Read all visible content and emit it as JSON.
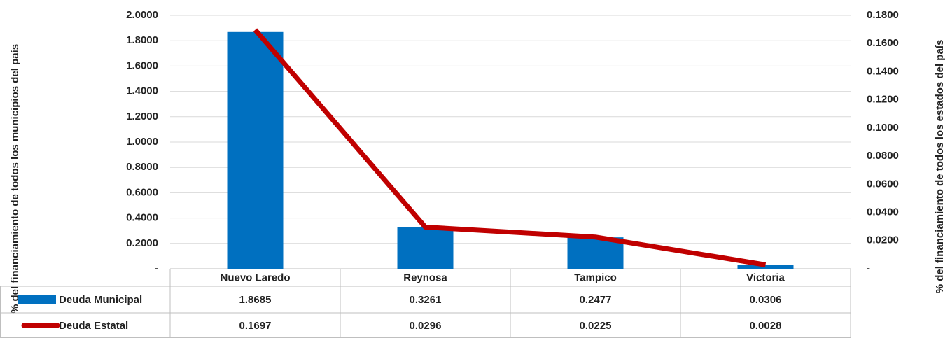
{
  "chart_data": {
    "type": "bar",
    "categories": [
      "Nuevo Laredo",
      "Reynosa",
      "Tampico",
      "Victoria"
    ],
    "series": [
      {
        "name": "Deuda Municipal",
        "type": "bar",
        "color": "#0070C0",
        "values": [
          1.8685,
          0.3261,
          0.2477,
          0.0306
        ]
      },
      {
        "name": "Deuda Estatal",
        "type": "line",
        "axis": "y2",
        "color": "#C00000",
        "values": [
          0.1697,
          0.0296,
          0.0225,
          0.0028
        ]
      }
    ],
    "ylabel": "% del financiamiento  de todos los municipios del país",
    "y2label": "% del financiamiento de todos los estados del país",
    "ylim": [
      0,
      2
    ],
    "yticks": [
      {
        "value": 0,
        "label": "-"
      },
      {
        "value": 0.2,
        "label": "0.2000"
      },
      {
        "value": 0.4,
        "label": "0.4000"
      },
      {
        "value": 0.6,
        "label": "0.6000"
      },
      {
        "value": 0.8,
        "label": "0.8000"
      },
      {
        "value": 1,
        "label": "1.0000"
      },
      {
        "value": 1.2,
        "label": "1.2000"
      },
      {
        "value": 1.4,
        "label": "1.4000"
      },
      {
        "value": 1.6,
        "label": "1.6000"
      },
      {
        "value": 1.8,
        "label": "1.8000"
      },
      {
        "value": 2,
        "label": "2.0000"
      }
    ],
    "y2lim": [
      0,
      0.18
    ],
    "y2ticks": [
      {
        "value": 0,
        "label": "-"
      },
      {
        "value": 0.02,
        "label": "0.0200"
      },
      {
        "value": 0.04,
        "label": "0.0400"
      },
      {
        "value": 0.06,
        "label": "0.0600"
      },
      {
        "value": 0.08,
        "label": "0.0800"
      },
      {
        "value": 0.1,
        "label": "0.1000"
      },
      {
        "value": 0.12,
        "label": "0.1200"
      },
      {
        "value": 0.14,
        "label": "0.1400"
      },
      {
        "value": 0.16,
        "label": "0.1600"
      },
      {
        "value": 0.18,
        "label": "0.1800"
      }
    ],
    "grid": true,
    "data_table": true
  }
}
